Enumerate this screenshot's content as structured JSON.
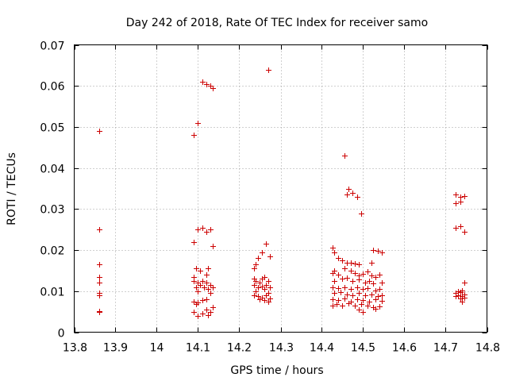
{
  "chart_data": {
    "type": "scatter",
    "title": "Day 242 of 2018, Rate Of TEC Index for receiver samo",
    "xlabel": "GPS time / hours",
    "ylabel": "ROTI / TECUs",
    "xlim": [
      13.8,
      14.8
    ],
    "ylim": [
      0,
      0.07
    ],
    "xticks": [
      "13.8",
      "13.9",
      "14",
      "14.1",
      "14.2",
      "14.3",
      "14.4",
      "14.5",
      "14.6",
      "14.7",
      "14.8"
    ],
    "yticks": [
      "0",
      "0.01",
      "0.02",
      "0.03",
      "0.04",
      "0.05",
      "0.06",
      "0.07"
    ],
    "grid": true,
    "marker": "+",
    "color": "#cc0000",
    "series": [
      {
        "name": "samo",
        "points": [
          [
            13.86,
            0.049
          ],
          [
            13.86,
            0.025
          ],
          [
            13.86,
            0.0165
          ],
          [
            13.86,
            0.0135
          ],
          [
            13.86,
            0.012
          ],
          [
            13.86,
            0.0095
          ],
          [
            13.86,
            0.009
          ],
          [
            13.86,
            0.005
          ],
          [
            13.86,
            0.0052
          ],
          [
            14.09,
            0.048
          ],
          [
            14.1,
            0.051
          ],
          [
            14.11,
            0.061
          ],
          [
            14.12,
            0.0605
          ],
          [
            14.13,
            0.06
          ],
          [
            14.135,
            0.0595
          ],
          [
            14.09,
            0.022
          ],
          [
            14.1,
            0.025
          ],
          [
            14.11,
            0.0255
          ],
          [
            14.12,
            0.0245
          ],
          [
            14.13,
            0.025
          ],
          [
            14.135,
            0.021
          ],
          [
            14.095,
            0.0155
          ],
          [
            14.105,
            0.015
          ],
          [
            14.125,
            0.0155
          ],
          [
            14.09,
            0.0135
          ],
          [
            14.12,
            0.014
          ],
          [
            14.09,
            0.0125
          ],
          [
            14.1,
            0.012
          ],
          [
            14.11,
            0.0125
          ],
          [
            14.12,
            0.012
          ],
          [
            14.13,
            0.0115
          ],
          [
            14.095,
            0.011
          ],
          [
            14.105,
            0.0115
          ],
          [
            14.115,
            0.011
          ],
          [
            14.135,
            0.011
          ],
          [
            14.125,
            0.0105
          ],
          [
            14.13,
            0.0095
          ],
          [
            14.1,
            0.01
          ],
          [
            14.09,
            0.0075
          ],
          [
            14.1,
            0.0072
          ],
          [
            14.11,
            0.0078
          ],
          [
            14.12,
            0.008
          ],
          [
            14.095,
            0.0068
          ],
          [
            14.09,
            0.005
          ],
          [
            14.1,
            0.004
          ],
          [
            14.11,
            0.0045
          ],
          [
            14.12,
            0.0055
          ],
          [
            14.13,
            0.005
          ],
          [
            14.135,
            0.006
          ],
          [
            14.125,
            0.0042
          ],
          [
            14.27,
            0.064
          ],
          [
            14.265,
            0.0215
          ],
          [
            14.255,
            0.0195
          ],
          [
            14.275,
            0.0185
          ],
          [
            14.245,
            0.018
          ],
          [
            14.24,
            0.0165
          ],
          [
            14.235,
            0.0155
          ],
          [
            14.235,
            0.013
          ],
          [
            14.24,
            0.0125
          ],
          [
            14.25,
            0.012
          ],
          [
            14.26,
            0.0135
          ],
          [
            14.27,
            0.0125
          ],
          [
            14.255,
            0.013
          ],
          [
            14.235,
            0.0115
          ],
          [
            14.245,
            0.011
          ],
          [
            14.255,
            0.0112
          ],
          [
            14.265,
            0.0115
          ],
          [
            14.275,
            0.011
          ],
          [
            14.24,
            0.01
          ],
          [
            14.26,
            0.0105
          ],
          [
            14.27,
            0.0095
          ],
          [
            14.235,
            0.009
          ],
          [
            14.245,
            0.0088
          ],
          [
            14.255,
            0.0085
          ],
          [
            14.265,
            0.009
          ],
          [
            14.275,
            0.0082
          ],
          [
            14.25,
            0.008
          ],
          [
            14.26,
            0.0078
          ],
          [
            14.27,
            0.0075
          ],
          [
            14.455,
            0.043
          ],
          [
            14.465,
            0.035
          ],
          [
            14.46,
            0.0335
          ],
          [
            14.475,
            0.034
          ],
          [
            14.485,
            0.033
          ],
          [
            14.495,
            0.029
          ],
          [
            14.425,
            0.0205
          ],
          [
            14.43,
            0.0195
          ],
          [
            14.44,
            0.018
          ],
          [
            14.45,
            0.0175
          ],
          [
            14.46,
            0.017
          ],
          [
            14.47,
            0.017
          ],
          [
            14.48,
            0.0168
          ],
          [
            14.49,
            0.0165
          ],
          [
            14.525,
            0.02
          ],
          [
            14.535,
            0.0198
          ],
          [
            14.545,
            0.0195
          ],
          [
            14.52,
            0.017
          ],
          [
            14.43,
            0.015
          ],
          [
            14.425,
            0.0145
          ],
          [
            14.44,
            0.014
          ],
          [
            14.455,
            0.0155
          ],
          [
            14.47,
            0.015
          ],
          [
            14.48,
            0.0145
          ],
          [
            14.49,
            0.0138
          ],
          [
            14.5,
            0.0142
          ],
          [
            14.51,
            0.0148
          ],
          [
            14.52,
            0.0138
          ],
          [
            14.53,
            0.0135
          ],
          [
            14.54,
            0.014
          ],
          [
            14.43,
            0.0125
          ],
          [
            14.45,
            0.013
          ],
          [
            14.46,
            0.0132
          ],
          [
            14.475,
            0.0125
          ],
          [
            14.49,
            0.0128
          ],
          [
            14.505,
            0.012
          ],
          [
            14.515,
            0.0125
          ],
          [
            14.525,
            0.0118
          ],
          [
            14.545,
            0.012
          ],
          [
            14.425,
            0.011
          ],
          [
            14.44,
            0.0108
          ],
          [
            14.455,
            0.011
          ],
          [
            14.47,
            0.0105
          ],
          [
            14.485,
            0.011
          ],
          [
            14.5,
            0.0105
          ],
          [
            14.51,
            0.0108
          ],
          [
            14.53,
            0.0102
          ],
          [
            14.54,
            0.0105
          ],
          [
            14.43,
            0.0095
          ],
          [
            14.445,
            0.0098
          ],
          [
            14.46,
            0.0092
          ],
          [
            14.475,
            0.009
          ],
          [
            14.49,
            0.0095
          ],
          [
            14.505,
            0.009
          ],
          [
            14.52,
            0.0092
          ],
          [
            14.535,
            0.0088
          ],
          [
            14.545,
            0.009
          ],
          [
            14.425,
            0.008
          ],
          [
            14.44,
            0.0078
          ],
          [
            14.455,
            0.0082
          ],
          [
            14.47,
            0.0075
          ],
          [
            14.485,
            0.008
          ],
          [
            14.5,
            0.0078
          ],
          [
            14.515,
            0.0075
          ],
          [
            14.53,
            0.008
          ],
          [
            14.545,
            0.0077
          ],
          [
            14.425,
            0.0065
          ],
          [
            14.435,
            0.0068
          ],
          [
            14.45,
            0.0065
          ],
          [
            14.465,
            0.007
          ],
          [
            14.48,
            0.0065
          ],
          [
            14.495,
            0.0068
          ],
          [
            14.51,
            0.0065
          ],
          [
            14.525,
            0.006
          ],
          [
            14.54,
            0.0062
          ],
          [
            14.49,
            0.0055
          ],
          [
            14.5,
            0.005
          ],
          [
            14.53,
            0.0058
          ],
          [
            14.725,
            0.0335
          ],
          [
            14.735,
            0.033
          ],
          [
            14.745,
            0.0332
          ],
          [
            14.725,
            0.0315
          ],
          [
            14.735,
            0.0318
          ],
          [
            14.725,
            0.0255
          ],
          [
            14.735,
            0.0258
          ],
          [
            14.745,
            0.0245
          ],
          [
            14.745,
            0.012
          ],
          [
            14.73,
            0.01
          ],
          [
            14.74,
            0.0102
          ],
          [
            14.725,
            0.0095
          ],
          [
            14.735,
            0.0098
          ],
          [
            14.745,
            0.0092
          ],
          [
            14.73,
            0.009
          ],
          [
            14.74,
            0.0088
          ],
          [
            14.725,
            0.0088
          ],
          [
            14.745,
            0.0085
          ],
          [
            14.735,
            0.0082
          ],
          [
            14.74,
            0.0075
          ]
        ]
      }
    ]
  }
}
